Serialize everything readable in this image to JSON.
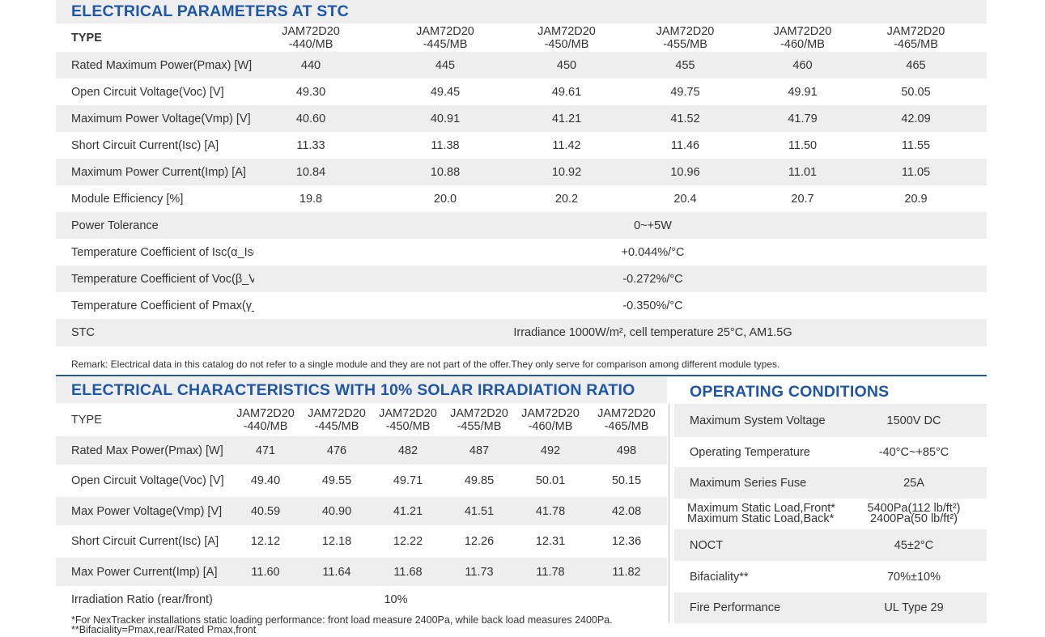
{
  "stc": {
    "title": "ELECTRICAL PARAMETERS AT STC",
    "type_label": "TYPE",
    "models": [
      [
        "JAM72D20",
        "-440/MB"
      ],
      [
        "JAM72D20",
        "-445/MB"
      ],
      [
        "JAM72D20",
        "-450/MB"
      ],
      [
        "JAM72D20",
        "-455/MB"
      ],
      [
        "JAM72D20",
        "-460/MB"
      ],
      [
        "JAM72D20",
        "-465/MB"
      ]
    ],
    "rows": [
      {
        "label": "Rated Maximum Power(Pmax) [W]",
        "values": [
          "440",
          "445",
          "450",
          "455",
          "460",
          "465"
        ]
      },
      {
        "label": "Open Circuit Voltage(Voc) [V]",
        "values": [
          "49.30",
          "49.45",
          "49.61",
          "49.75",
          "49.91",
          "50.05"
        ]
      },
      {
        "label": "Maximum Power Voltage(Vmp) [V]",
        "values": [
          "40.60",
          "40.91",
          "41.21",
          "41.52",
          "41.79",
          "42.09"
        ]
      },
      {
        "label": "Short Circuit Current(Isc) [A]",
        "values": [
          "11.33",
          "11.38",
          "11.42",
          "11.46",
          "11.50",
          "11.55"
        ]
      },
      {
        "label": "Maximum Power Current(Imp) [A]",
        "values": [
          "10.84",
          "10.88",
          "10.92",
          "10.96",
          "11.01",
          "11.05"
        ]
      },
      {
        "label": "Module Efficiency [%]",
        "values": [
          "19.8",
          "20.0",
          "20.2",
          "20.4",
          "20.7",
          "20.9"
        ]
      }
    ],
    "span_rows": [
      {
        "label": "Power Tolerance",
        "value": "0~+5W"
      },
      {
        "label": "Temperature Coefficient of Isc(α_Isc)",
        "value": "+0.044%/°C"
      },
      {
        "label": "Temperature Coefficient of Voc(β_Voc)",
        "value": "-0.272%/°C"
      },
      {
        "label": "Temperature Coefficient of Pmax(γ_Pmp)",
        "value": "-0.350%/°C"
      },
      {
        "label": "STC",
        "value": "Irradiance 1000W/m²,  cell temperature 25°C, AM1.5G"
      }
    ],
    "remark": "Remark: Electrical data in this catalog do not refer to a single module and they are not part of the offer.They only serve for comparison among different module types."
  },
  "irr": {
    "title": "ELECTRICAL CHARACTERISTICS WITH  10% SOLAR IRRADIATION RATIO",
    "type_label": "TYPE",
    "models": [
      [
        "JAM72D20",
        "-440/MB"
      ],
      [
        "JAM72D20",
        "-445/MB"
      ],
      [
        "JAM72D20",
        "-450/MB"
      ],
      [
        "JAM72D20",
        "-455/MB"
      ],
      [
        "JAM72D20",
        "-460/MB"
      ],
      [
        "JAM72D20",
        "-465/MB"
      ]
    ],
    "rows": [
      {
        "label": "Rated Max Power(Pmax) [W]",
        "values": [
          "471",
          "476",
          "482",
          "487",
          "492",
          "498"
        ]
      },
      {
        "label": "Open Circuit Voltage(Voc) [V]",
        "values": [
          "49.40",
          "49.55",
          "49.71",
          "49.85",
          "50.01",
          "50.15"
        ]
      },
      {
        "label": "Max Power Voltage(Vmp) [V]",
        "values": [
          "40.59",
          "40.90",
          "41.21",
          "41.51",
          "41.78",
          "42.08"
        ]
      },
      {
        "label": "Short Circuit Current(Isc) [A]",
        "values": [
          "12.12",
          "12.18",
          "12.22",
          "12.26",
          "12.31",
          "12.36"
        ]
      },
      {
        "label": "Max Power Current(Imp) [A]",
        "values": [
          "11.60",
          "11.64",
          "11.68",
          "11.73",
          "11.78",
          "11.82"
        ]
      }
    ],
    "ratio_label": "Irradiation Ratio (rear/front)",
    "ratio_value": "10%",
    "footnote1": "*For NexTracker installations static loading performance: front load measure 2400Pa, while back load measures 2400Pa.",
    "footnote2": "**Bifaciality=Pmax,rear/Rated Pmax,front"
  },
  "op": {
    "title": "OPERATING CONDITIONS",
    "rows": [
      {
        "label": "Maximum System Voltage",
        "value": "1500V DC"
      },
      {
        "label": "Operating Temperature",
        "value": "-40°C~+85°C"
      },
      {
        "label": "Maximum Series Fuse",
        "value": "25A"
      },
      {
        "label": "Maximum Static Load,Front*",
        "label2": "Maximum Static Load,Back*",
        "value": "5400Pa(112 lb/ft²)",
        "value2": "2400Pa(50 lb/ft²)"
      },
      {
        "label": "NOCT",
        "value": "45±2°C"
      },
      {
        "label": "Bifaciality**",
        "value": "70%±10%"
      },
      {
        "label": "Fire Performance",
        "value": "UL Type 29"
      }
    ]
  }
}
